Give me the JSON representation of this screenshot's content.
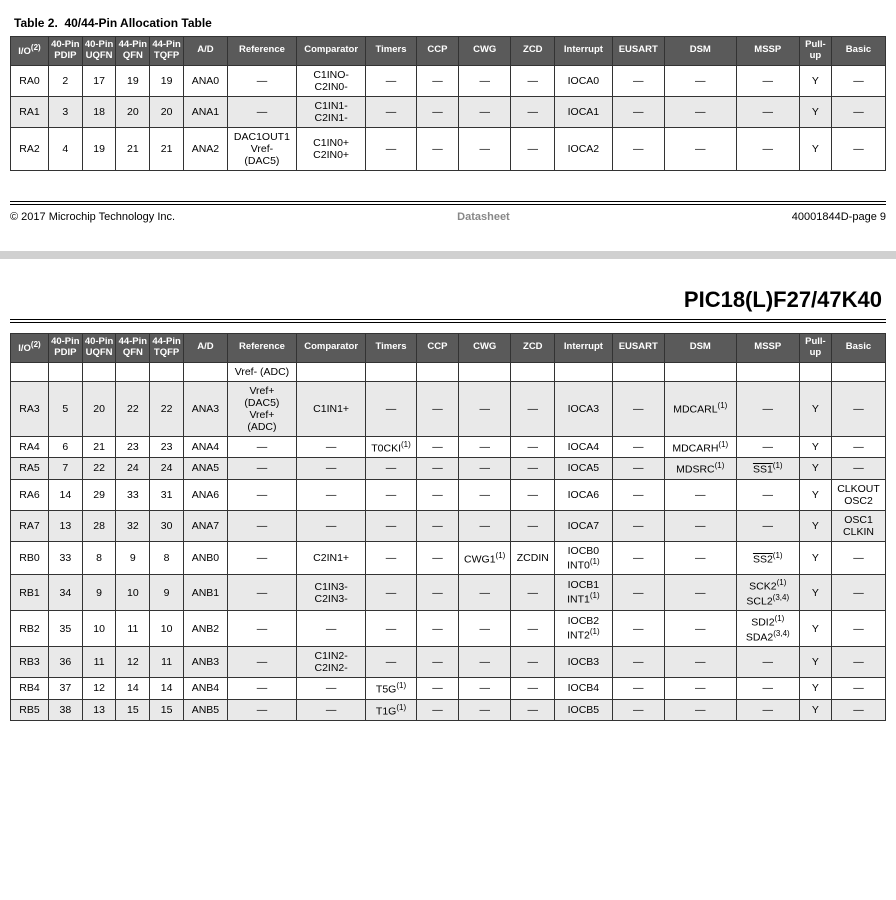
{
  "caption1": "Table 2.  40/44-Pin Allocation Table",
  "footer_left": "© 2017 Microchip Technology Inc.",
  "footer_center": "Datasheet",
  "footer_right": "40001844D-page 9",
  "big_title": "PIC18(L)F27/47K40",
  "headers": {
    "io": "I/O",
    "io_sup": "(2)",
    "p40pdip": "40-Pin PDIP",
    "p40uqfn": "40-Pin UQFN",
    "p44qfn": "44-Pin QFN",
    "p44tqfp": "44-Pin TQFP",
    "ad": "A/D",
    "ref": "Reference",
    "comp": "Comparator",
    "timers": "Timers",
    "ccp": "CCP",
    "cwg": "CWG",
    "zcd": "ZCD",
    "interrupt": "Interrupt",
    "eusart": "EUSART",
    "dsm": "DSM",
    "mssp": "MSSP",
    "pullup": "Pull-up",
    "basic": "Basic"
  },
  "t1": {
    "rows": [
      {
        "cls": "odd",
        "io": "RA0",
        "p1": "2",
        "p2": "17",
        "p3": "19",
        "p4": "19",
        "ad": "ANA0",
        "ref": "—",
        "comp": "C1INO-\nC2IN0-",
        "tm": "—",
        "ccp": "—",
        "cwg": "—",
        "zcd": "—",
        "int": "IOCA0",
        "eus": "—",
        "dsm": "—",
        "mssp": "—",
        "pu": "Y",
        "bas": "—"
      },
      {
        "cls": "even",
        "io": "RA1",
        "p1": "3",
        "p2": "18",
        "p3": "20",
        "p4": "20",
        "ad": "ANA1",
        "ref": "—",
        "comp": "C1IN1-\nC2IN1-",
        "tm": "—",
        "ccp": "—",
        "cwg": "—",
        "zcd": "—",
        "int": "IOCA1",
        "eus": "—",
        "dsm": "—",
        "mssp": "—",
        "pu": "Y",
        "bas": "—"
      },
      {
        "cls": "odd",
        "io": "RA2",
        "p1": "4",
        "p2": "19",
        "p3": "21",
        "p4": "21",
        "ad": "ANA2",
        "ref": "DAC1OUT1\nVref-\n(DAC5)",
        "comp": "C1IN0+\nC2IN0+",
        "tm": "—",
        "ccp": "—",
        "cwg": "—",
        "zcd": "—",
        "int": "IOCA2",
        "eus": "—",
        "dsm": "—",
        "mssp": "—",
        "pu": "Y",
        "bas": "—"
      }
    ]
  },
  "t2": {
    "prefixrow": {
      "ref": "Vref- (ADC)"
    },
    "rows": [
      {
        "cls": "even",
        "io": "RA3",
        "p1": "5",
        "p2": "20",
        "p3": "22",
        "p4": "22",
        "ad": "ANA3",
        "ref": "Vref+\n(DAC5)\nVref+\n(ADC)",
        "comp": "C1IN1+",
        "tm": "—",
        "ccp": "—",
        "cwg": "—",
        "zcd": "—",
        "int": "IOCA3",
        "eus": "—",
        "dsm": {
          "t": "MDCARL",
          "s": "(1)"
        },
        "mssp": "—",
        "pu": "Y",
        "bas": "—"
      },
      {
        "cls": "odd",
        "io": "RA4",
        "p1": "6",
        "p2": "21",
        "p3": "23",
        "p4": "23",
        "ad": "ANA4",
        "ref": "—",
        "comp": "—",
        "tm": {
          "t": "T0CKI",
          "s": "(1)"
        },
        "ccp": "—",
        "cwg": "—",
        "zcd": "—",
        "int": "IOCA4",
        "eus": "—",
        "dsm": {
          "t": "MDCARH",
          "s": "(1)"
        },
        "mssp": "—",
        "pu": "Y",
        "bas": "—"
      },
      {
        "cls": "even",
        "io": "RA5",
        "p1": "7",
        "p2": "22",
        "p3": "24",
        "p4": "24",
        "ad": "ANA5",
        "ref": "—",
        "comp": "—",
        "tm": "—",
        "ccp": "—",
        "cwg": "—",
        "zcd": "—",
        "int": "IOCA5",
        "eus": "—",
        "dsm": {
          "t": "MDSRC",
          "s": "(1)"
        },
        "mssp": {
          "ov": "SS1",
          "s": "(1)"
        },
        "pu": "Y",
        "bas": "—"
      },
      {
        "cls": "odd",
        "io": "RA6",
        "p1": "14",
        "p2": "29",
        "p3": "33",
        "p4": "31",
        "ad": "ANA6",
        "ref": "—",
        "comp": "—",
        "tm": "—",
        "ccp": "—",
        "cwg": "—",
        "zcd": "—",
        "int": "IOCA6",
        "eus": "—",
        "dsm": "—",
        "mssp": "—",
        "pu": "Y",
        "bas": "CLKOUT\nOSC2"
      },
      {
        "cls": "even",
        "io": "RA7",
        "p1": "13",
        "p2": "28",
        "p3": "32",
        "p4": "30",
        "ad": "ANA7",
        "ref": "—",
        "comp": "—",
        "tm": "—",
        "ccp": "—",
        "cwg": "—",
        "zcd": "—",
        "int": "IOCA7",
        "eus": "—",
        "dsm": "—",
        "mssp": "—",
        "pu": "Y",
        "bas": "OSC1\nCLKIN"
      },
      {
        "cls": "odd",
        "io": "RB0",
        "p1": "33",
        "p2": "8",
        "p3": "9",
        "p4": "8",
        "ad": "ANB0",
        "ref": "—",
        "comp": "C2IN1+",
        "tm": "—",
        "ccp": "—",
        "cwg": {
          "t": "CWG1",
          "s": "(1)"
        },
        "zcd": "ZCDIN",
        "int": {
          "lines": [
            {
              "t": "IOCB0"
            },
            {
              "t": "INT0",
              "s": "(1)"
            }
          ]
        },
        "eus": "—",
        "dsm": "—",
        "mssp": {
          "ov": "SS2",
          "s": "(1)"
        },
        "pu": "Y",
        "bas": "—"
      },
      {
        "cls": "even",
        "io": "RB1",
        "p1": "34",
        "p2": "9",
        "p3": "10",
        "p4": "9",
        "ad": "ANB1",
        "ref": "—",
        "comp": "C1IN3-\nC2IN3-",
        "tm": "—",
        "ccp": "—",
        "cwg": "—",
        "zcd": "—",
        "int": {
          "lines": [
            {
              "t": "IOCB1"
            },
            {
              "t": "INT1",
              "s": "(1)"
            }
          ]
        },
        "eus": "—",
        "dsm": "—",
        "mssp": {
          "lines": [
            {
              "t": "SCK2",
              "s": "(1)"
            },
            {
              "t": "SCL2",
              "s": "(3,4)"
            }
          ]
        },
        "pu": "Y",
        "bas": "—"
      },
      {
        "cls": "odd",
        "io": "RB2",
        "p1": "35",
        "p2": "10",
        "p3": "11",
        "p4": "10",
        "ad": "ANB2",
        "ref": "—",
        "comp": "—",
        "tm": "—",
        "ccp": "—",
        "cwg": "—",
        "zcd": "—",
        "int": {
          "lines": [
            {
              "t": "IOCB2"
            },
            {
              "t": "INT2",
              "s": "(1)"
            }
          ]
        },
        "eus": "—",
        "dsm": "—",
        "mssp": {
          "lines": [
            {
              "t": "SDI2",
              "s": "(1)"
            },
            {
              "t": "SDA2",
              "s": "(3,4)"
            }
          ]
        },
        "pu": "Y",
        "bas": "—"
      },
      {
        "cls": "even",
        "io": "RB3",
        "p1": "36",
        "p2": "11",
        "p3": "12",
        "p4": "11",
        "ad": "ANB3",
        "ref": "—",
        "comp": "C1IN2-\nC2IN2-",
        "tm": "—",
        "ccp": "—",
        "cwg": "—",
        "zcd": "—",
        "int": "IOCB3",
        "eus": "—",
        "dsm": "—",
        "mssp": "—",
        "pu": "Y",
        "bas": "—"
      },
      {
        "cls": "odd",
        "io": "RB4",
        "p1": "37",
        "p2": "12",
        "p3": "14",
        "p4": "14",
        "ad": "ANB4",
        "ref": "—",
        "comp": "—",
        "tm": {
          "t": "T5G",
          "s": "(1)"
        },
        "ccp": "—",
        "cwg": "—",
        "zcd": "—",
        "int": "IOCB4",
        "eus": "—",
        "dsm": "—",
        "mssp": "—",
        "pu": "Y",
        "bas": "—"
      },
      {
        "cls": "even",
        "io": "RB5",
        "p1": "38",
        "p2": "13",
        "p3": "15",
        "p4": "15",
        "ad": "ANB5",
        "ref": "—",
        "comp": "—",
        "tm": {
          "t": "T1G",
          "s": "(1)"
        },
        "ccp": "—",
        "cwg": "—",
        "zcd": "—",
        "int": "IOCB5",
        "eus": "—",
        "dsm": "—",
        "mssp": "—",
        "pu": "Y",
        "bas": "—"
      }
    ]
  }
}
